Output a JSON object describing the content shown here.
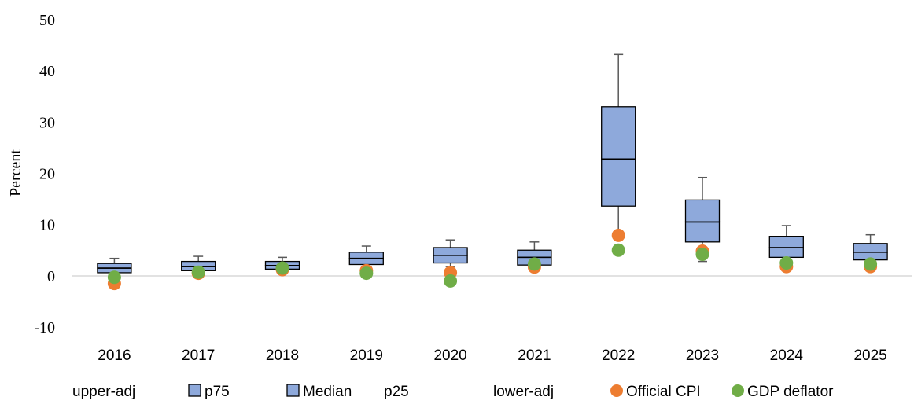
{
  "chart_data": {
    "type": "box",
    "ylabel": "Percent",
    "xlabel": "",
    "ylim": [
      -10,
      50
    ],
    "yticks": [
      "50",
      "40",
      "30",
      "20",
      "10",
      "0",
      "-10"
    ],
    "yticks_values": [
      50,
      40,
      30,
      20,
      10,
      0,
      -10
    ],
    "categories": [
      "2016",
      "2017",
      "2018",
      "2019",
      "2020",
      "2021",
      "2022",
      "2023",
      "2024",
      "2025"
    ],
    "boxes": [
      {
        "upper_adj": 3.4,
        "p75": 2.4,
        "median": 1.5,
        "p25": 0.6,
        "lower_adj": 0.6
      },
      {
        "upper_adj": 3.8,
        "p75": 2.8,
        "median": 1.8,
        "p25": 1.0,
        "lower_adj": 0.8
      },
      {
        "upper_adj": 3.6,
        "p75": 2.8,
        "median": 2.0,
        "p25": 1.3,
        "lower_adj": 1.0
      },
      {
        "upper_adj": 5.8,
        "p75": 4.6,
        "median": 3.4,
        "p25": 2.2,
        "lower_adj": 1.5
      },
      {
        "upper_adj": 7.0,
        "p75": 5.5,
        "median": 4.0,
        "p25": 2.5,
        "lower_adj": 1.8
      },
      {
        "upper_adj": 6.6,
        "p75": 5.0,
        "median": 3.6,
        "p25": 2.1,
        "lower_adj": 1.6
      },
      {
        "upper_adj": 43.2,
        "p75": 33.0,
        "median": 22.8,
        "p25": 13.6,
        "lower_adj": 7.8
      },
      {
        "upper_adj": 19.2,
        "p75": 14.8,
        "median": 10.5,
        "p25": 6.6,
        "lower_adj": 2.8
      },
      {
        "upper_adj": 9.8,
        "p75": 7.7,
        "median": 5.5,
        "p25": 3.6,
        "lower_adj": 2.5
      },
      {
        "upper_adj": 8.0,
        "p75": 6.3,
        "median": 4.6,
        "p25": 3.1,
        "lower_adj": 2.2
      }
    ],
    "series": [
      {
        "name": "Official CPI",
        "color": "#ED7D31",
        "values": [
          -1.5,
          0.5,
          1.2,
          1.0,
          0.6,
          1.7,
          7.9,
          4.8,
          1.8,
          1.8
        ]
      },
      {
        "name": "GDP deflator",
        "color": "#70AD47",
        "values": [
          -0.3,
          0.7,
          1.5,
          0.5,
          -1.0,
          2.3,
          5.0,
          4.2,
          2.5,
          2.3
        ]
      }
    ],
    "box_fill": "#8EA9DB",
    "whisker_color": "#595959",
    "legend": {
      "position": "bottom",
      "items": [
        {
          "label": "upper-adj",
          "marker": "none"
        },
        {
          "label": "p75",
          "marker": "square"
        },
        {
          "label": "Median",
          "marker": "square"
        },
        {
          "label": "p25",
          "marker": "none"
        },
        {
          "label": "lower-adj",
          "marker": "none"
        },
        {
          "label": "Official CPI",
          "marker": "circle",
          "color": "#ED7D31"
        },
        {
          "label": "GDP deflator",
          "marker": "circle",
          "color": "#70AD47"
        }
      ]
    },
    "grid": false
  }
}
